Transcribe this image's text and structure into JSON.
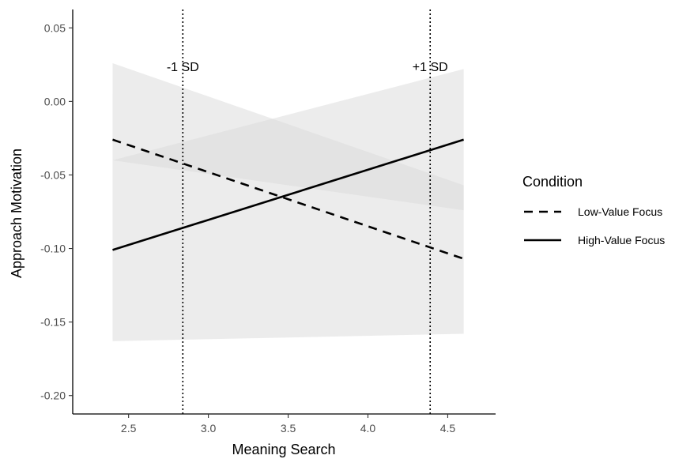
{
  "chart_data": {
    "type": "line",
    "xlabel": "Meaning Search",
    "ylabel": "Approach Motivation",
    "xlim": [
      2.15,
      4.8
    ],
    "ylim": [
      -0.2125,
      0.0625
    ],
    "xticks": [
      2.5,
      3.0,
      3.5,
      4.0,
      4.5
    ],
    "xtick_labels": [
      "2.5",
      "3.0",
      "3.5",
      "4.0",
      "4.5"
    ],
    "yticks": [
      0.05,
      0.0,
      -0.05,
      -0.1,
      -0.15,
      -0.2
    ],
    "ytick_labels": [
      "0.05",
      "0.00",
      "-0.05",
      "-0.10",
      "-0.15",
      "-0.20"
    ],
    "grid": false,
    "legend": {
      "title": "Condition",
      "position": "right"
    },
    "series": [
      {
        "name": "Low-Value Focus",
        "style": "dashed",
        "x": [
          2.4,
          4.6
        ],
        "y": [
          -0.026,
          -0.107
        ],
        "ci_lower": [
          -0.163,
          -0.158
        ],
        "ci_upper": [
          0.026,
          -0.057
        ]
      },
      {
        "name": "High-Value Focus",
        "style": "solid",
        "x": [
          2.4,
          4.6
        ],
        "y": [
          -0.101,
          -0.026
        ],
        "ci_lower": [
          -0.04,
          -0.074
        ],
        "ci_upper": [
          -0.04,
          0.022
        ]
      }
    ],
    "annotations": [
      {
        "x": 2.84,
        "label": "-1 SD",
        "style": "dotted"
      },
      {
        "x": 4.39,
        "label": "+1 SD",
        "style": "dotted"
      }
    ],
    "colors": {
      "line": "#000000",
      "ribbon": "#d9d9d9",
      "axis": "#000000",
      "tick_text": "#4d4d4d"
    }
  }
}
